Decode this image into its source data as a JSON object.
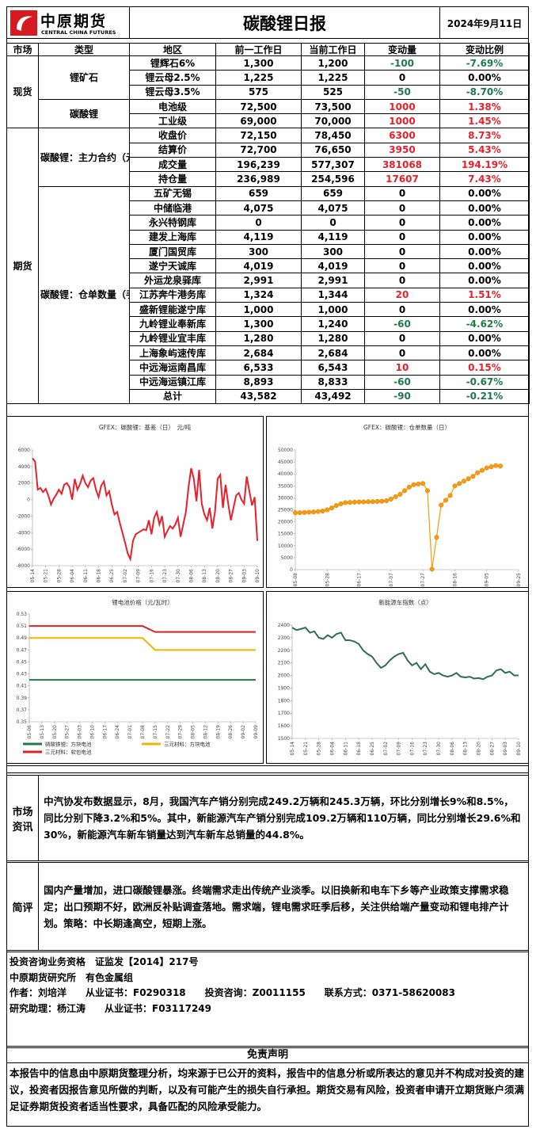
{
  "header": {
    "logo_name": "中原期货",
    "logo_en": "CENTRAL CHINA FUTURES",
    "title": "碳酸锂日报",
    "date": "2024年9月11日"
  },
  "table": {
    "header": [
      "市场",
      "类型",
      "地区",
      "前一工作日",
      "当前工作日",
      "变动量",
      "变动比例"
    ],
    "groups": [
      {
        "market": "现货",
        "types": [
          {
            "type": "锂矿石",
            "rows": [
              [
                "锂辉石6%",
                "1,300",
                "1,200",
                -100,
                "-7.69%"
              ],
              [
                "锂云母2.5%",
                "1,225",
                "1,225",
                0,
                "0.00%"
              ],
              [
                "锂云母3.5%",
                "575",
                "525",
                -50,
                "-8.70%"
              ]
            ]
          },
          {
            "type": "碳酸锂",
            "rows": [
              [
                "电池级",
                "72,500",
                "73,500",
                1000,
                "1.38%"
              ],
              [
                "工业级",
                "69,000",
                "70,000",
                1000,
                "1.45%"
              ]
            ]
          }
        ]
      },
      {
        "market": "期货",
        "types": [
          {
            "type": "碳酸锂：主力合约（元/吨）",
            "rows": [
              [
                "收盘价",
                "72,150",
                "78,450",
                6300,
                "8.73%"
              ],
              [
                "结算价",
                "72,700",
                "76,650",
                3950,
                "5.43%"
              ],
              [
                "成交量",
                "196,239",
                "577,307",
                381068,
                "194.19%"
              ],
              [
                "持仓量",
                "236,989",
                "254,596",
                17607,
                "7.43%"
              ]
            ]
          },
          {
            "type": "碳酸锂：仓单数量（手）",
            "rows": [
              [
                "五矿无锡",
                "659",
                "659",
                0,
                "0.00%"
              ],
              [
                "中储临港",
                "4,075",
                "4,075",
                0,
                "0.00%"
              ],
              [
                "永兴特钢库",
                "0",
                "0",
                0,
                "0.00%"
              ],
              [
                "建发上海库",
                "4,119",
                "4,119",
                0,
                "0.00%"
              ],
              [
                "厦门国贸库",
                "300",
                "300",
                0,
                "0.00%"
              ],
              [
                "遂宁天诚库",
                "4,019",
                "4,019",
                0,
                "0.00%"
              ],
              [
                "外运龙泉驿库",
                "2,991",
                "2,991",
                0,
                "0.00%"
              ],
              [
                "江苏奔牛港务库",
                "1,324",
                "1,344",
                20,
                "1.51%"
              ],
              [
                "盛新锂能遂宁库",
                "1,000",
                "1,000",
                0,
                "0.00%"
              ],
              [
                "九岭锂业奉新库",
                "1,300",
                "1,240",
                -60,
                "-4.62%"
              ],
              [
                "九岭锂业宜丰库",
                "1,280",
                "1,280",
                0,
                "0.00%"
              ],
              [
                "上海象屿速传库",
                "2,684",
                "2,684",
                0,
                "0.00%"
              ],
              [
                "中远海运南昌库",
                "6,533",
                "6,543",
                10,
                "0.15%"
              ],
              [
                "中远海运镇江库",
                "8,893",
                "8,833",
                -60,
                "-0.67%"
              ],
              [
                "总计",
                "43,582",
                "43,492",
                -90,
                "-0.21%"
              ]
            ]
          }
        ]
      }
    ]
  },
  "charts": [
    {
      "type": "line",
      "title": "GFEX：碳酸锂：基差（日）　元/吨",
      "categories": [
        "05-14",
        null,
        null,
        null,
        null,
        "05-21",
        null,
        null,
        null,
        null,
        "05-28",
        null,
        null,
        null,
        null,
        "06-04",
        null,
        null,
        null,
        null,
        "06-11",
        null,
        null,
        null,
        null,
        "06-18",
        null,
        null,
        null,
        null,
        "06-25",
        null,
        null,
        null,
        null,
        "07-02",
        null,
        null,
        null,
        null,
        "07-09",
        null,
        null,
        null,
        null,
        "07-16",
        null,
        null,
        null,
        null,
        "07-23",
        null,
        null,
        null,
        null,
        "07-30",
        null,
        null,
        null,
        null,
        "08-06",
        null,
        null,
        null,
        null,
        "08-13",
        null,
        null,
        null,
        null,
        "08-20",
        null,
        null,
        null,
        null,
        "08-27",
        null,
        null,
        null,
        null,
        "09-03",
        null,
        null,
        null,
        null,
        "09-10"
      ],
      "series": [
        {
          "color": "#e8202a",
          "values": [
            5000,
            4600,
            1200,
            1400,
            900,
            1300,
            500,
            -600,
            100,
            600,
            1200,
            700,
            1800,
            2000,
            1500,
            0,
            2500,
            1200,
            1900,
            2900,
            2000,
            1500,
            2300,
            2600,
            1200,
            300,
            1700,
            2200,
            500,
            1000,
            -600,
            -1800,
            -1500,
            -2800,
            -4000,
            -5200,
            -6500,
            -7200,
            -5000,
            -4200,
            -4000,
            -3800,
            -3600,
            -3700,
            -2500,
            -4200,
            -2200,
            -1500,
            -3000,
            -2000,
            -4500,
            -3800,
            -3200,
            -3500,
            -3000,
            -2200,
            -4500,
            -3000,
            -1500,
            1500,
            3800,
            2500,
            -200,
            3600,
            -500,
            -1800,
            -2500,
            -1000,
            -3500,
            -1500,
            2500,
            3000,
            -1000,
            1800,
            -500,
            -2500,
            -1000,
            500,
            800,
            0,
            -500,
            2800,
            1000,
            -700,
            300,
            -5000
          ]
        }
      ],
      "ylim": [
        -8000,
        6000
      ],
      "yticks": [
        6000,
        4000,
        2000,
        0,
        -2000,
        -4000,
        -6000,
        -8000
      ],
      "markers": false
    },
    {
      "type": "line",
      "title": "GFEX：碳酸锂：仓单数量（日）",
      "categories": [
        "05-08",
        null,
        null,
        null,
        null,
        null,
        null,
        "05-28",
        null,
        null,
        null,
        null,
        null,
        null,
        "06-17",
        null,
        null,
        null,
        null,
        null,
        null,
        "07-07",
        null,
        null,
        null,
        null,
        null,
        null,
        "07-27",
        null,
        null,
        null,
        null,
        null,
        null,
        "08-16",
        null,
        null,
        null,
        null,
        null,
        null,
        "09-05",
        null,
        null,
        null,
        null,
        null,
        null,
        "09-25"
      ],
      "series": [
        {
          "color": "#f39c12",
          "values": [
            23800,
            23800,
            23900,
            24000,
            24100,
            24300,
            24500,
            25000,
            25800,
            26800,
            27500,
            28000,
            28100,
            28200,
            28300,
            28300,
            28400,
            28400,
            28500,
            28600,
            28800,
            29500,
            30500,
            31500,
            33000,
            34500,
            35500,
            35800,
            36000,
            33000,
            200,
            13500,
            27000,
            29000,
            31000,
            35000,
            36000,
            37000,
            38000,
            39000,
            40500,
            41500,
            42500,
            43000,
            43500,
            43300,
            null,
            null,
            null,
            null
          ]
        }
      ],
      "ylim": [
        0,
        50000
      ],
      "yticks": [
        50000,
        45000,
        40000,
        35000,
        30000,
        25000,
        20000,
        15000,
        10000,
        5000,
        0
      ],
      "markers": true
    },
    {
      "type": "line",
      "title": "锂电池价格（元/瓦时）",
      "categories": [
        "05-06",
        "05-13",
        "05-20",
        "05-27",
        "06-03",
        "06-10",
        "06-17",
        "06-24",
        "07-01",
        "07-08",
        "07-15",
        "07-22",
        "07-29",
        "08-05",
        "08-12",
        "08-19",
        "08-26",
        "09-02",
        "09-09"
      ],
      "series": [
        {
          "name": "磷酸铁锂：方块电池",
          "color": "#1f7a4d",
          "values": [
            0.42,
            0.42,
            0.42,
            0.42,
            0.42,
            0.42,
            0.42,
            0.42,
            0.42,
            0.42,
            0.42,
            0.42,
            0.42,
            0.42,
            0.42,
            0.42,
            0.42,
            0.42,
            0.42
          ]
        },
        {
          "name": "三元材料：方块电池",
          "color": "#f2b400",
          "values": [
            0.49,
            0.49,
            0.49,
            0.49,
            0.49,
            0.49,
            0.49,
            0.49,
            0.49,
            0.49,
            0.47,
            0.47,
            0.47,
            0.47,
            0.47,
            0.47,
            0.47,
            0.47,
            0.47
          ]
        },
        {
          "name": "三元材料：软包电池",
          "color": "#e02020",
          "values": [
            0.51,
            0.51,
            0.51,
            0.51,
            0.51,
            0.51,
            0.51,
            0.51,
            0.51,
            0.51,
            0.5,
            0.5,
            0.5,
            0.5,
            0.5,
            0.5,
            0.5,
            0.5,
            0.5
          ]
        }
      ],
      "ylim": [
        0.35,
        0.53
      ],
      "yticks": [
        0.53,
        0.51,
        0.49,
        0.47,
        0.45,
        0.43,
        0.41,
        0.39,
        0.37,
        0.35
      ],
      "markers": false
    },
    {
      "type": "line",
      "title": "新能源车指数（点）",
      "categories": [
        "05-14",
        null,
        null,
        "05-21",
        null,
        null,
        "05-28",
        null,
        null,
        "06-04",
        null,
        null,
        "06-11",
        null,
        null,
        "06-18",
        null,
        null,
        "06-25",
        null,
        null,
        "07-02",
        null,
        null,
        "07-09",
        null,
        null,
        "07-16",
        null,
        null,
        "07-23",
        null,
        null,
        "07-30",
        null,
        null,
        "08-06",
        null,
        null,
        "08-13",
        null,
        null,
        "08-20",
        null,
        null,
        "08-27",
        null,
        null,
        "09-03",
        null,
        null,
        "09-10"
      ],
      "series": [
        {
          "color": "#2e6b5a",
          "values": [
            2380,
            2360,
            2370,
            2380,
            2340,
            2350,
            2300,
            2290,
            2320,
            2300,
            2330,
            2340,
            2280,
            2280,
            2270,
            2250,
            2200,
            2170,
            2150,
            2100,
            2060,
            2080,
            2120,
            2150,
            2170,
            2180,
            2120,
            2080,
            2100,
            2050,
            2090,
            2030,
            2010,
            2020,
            2000,
            1990,
            2000,
            2020,
            1990,
            1985,
            1990,
            1975,
            1980,
            1970,
            1990,
            2000,
            2040,
            2050,
            2020,
            2030,
            2000,
            2000
          ]
        }
      ],
      "ylim": [
        1500,
        2400
      ],
      "yticks": [
        2400,
        2300,
        2200,
        2100,
        2000,
        1900,
        1800,
        1700,
        1600,
        1500
      ],
      "markers": false
    }
  ],
  "sections": [
    {
      "label": "市场资讯",
      "text": "中汽协发布数据显示，8月，我国汽车产销分别完成249.2万辆和245.3万辆，环比分别增长9%和8.5%，同比分别下降3.2%和5%。其中，新能源汽车产销分别完成109.2万辆和110万辆，同比分别增长29.6%和30%，新能源汽车新车销量达到汽车新车总销量的44.8%。"
    },
    {
      "label": "简评",
      "text": "国内产量增加，进口碳酸锂暴涨。终端需求走出传统产业淡季。以旧换新和电车下乡等产业政策支撑需求稳定；出口预期不好，欧洲反补贴调查落地。需求端，锂电需求旺季后移，关注供给端产量变动和锂电排产计划。策略：中长期逢高空，短期上涨。"
    }
  ],
  "info": [
    "投资咨询业务资格　证监发【2014】217号",
    "中原期货研究所　有色金属组",
    "作者：刘培洋　　从业证书：F0290318　　投资咨询：Z0011155　　联系方式：0371-58620083",
    "研究助理：杨江涛　　从业证书：F03117249"
  ],
  "disclaimer": {
    "title": "免责声明",
    "text": "本报告中的信息由中原期货整理分析，均来源于已公开的资料，报告中的信息分析或所表达的意见并不构成对投资的建议，投资者因报告意见所做的判断，以及有可能产生的损失自行承担。期货交易有风险，投资者申请开立期货账户须满足证券期货投资者适当性要求，具备匹配的风险承受能力。"
  }
}
